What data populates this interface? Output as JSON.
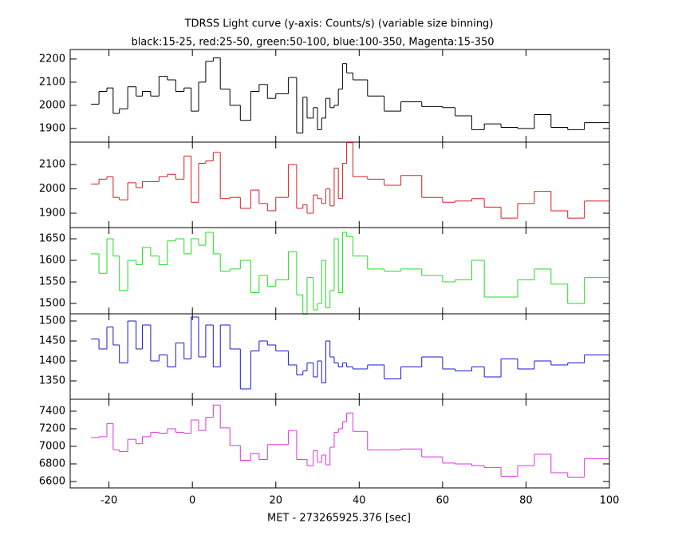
{
  "title": "TDRSS Light curve (y-axis: Counts/s) (variable size binning)",
  "subtitle": "black:15-25, red:25-50, green:50-100, blue:100-350, Magenta:15-350",
  "xlabel": "MET - 273265925.376 [sec]",
  "xlim": [
    -29.3,
    100
  ],
  "xticks": [
    -20,
    0,
    20,
    40,
    60,
    80,
    100
  ],
  "bins": [
    -24.3,
    -22.4,
    -20.5,
    -19,
    -17.5,
    -15.5,
    -13.5,
    -12,
    -10,
    -8,
    -6,
    -4,
    -2,
    -0.3,
    1.5,
    3.2,
    5,
    6.7,
    9,
    11.5,
    14,
    16,
    18,
    20,
    23,
    25,
    26.5,
    27.5,
    29,
    30,
    31,
    32,
    33,
    34,
    35,
    36,
    37,
    38.5,
    42,
    46,
    50,
    55,
    60,
    63,
    67,
    70,
    74,
    78,
    82,
    86,
    90,
    94,
    100
  ],
  "chart_data": [
    {
      "type": "step",
      "color": "#000000",
      "ylim": [
        1841,
        2241
      ],
      "yticks": [
        1900,
        2000,
        2100,
        2200
      ],
      "values": [
        2005,
        2060,
        2075,
        1965,
        1985,
        2080,
        2040,
        2060,
        2040,
        2125,
        2110,
        2060,
        2075,
        1975,
        2100,
        2190,
        2205,
        2070,
        2000,
        1935,
        2060,
        2090,
        2030,
        2050,
        2120,
        1880,
        2035,
        1945,
        1990,
        1895,
        1945,
        2030,
        1990,
        2000,
        2070,
        2180,
        2140,
        2110,
        2040,
        1975,
        2015,
        1995,
        1990,
        1955,
        1895,
        1920,
        1905,
        1900,
        1960,
        1905,
        1895,
        1925
      ]
    },
    {
      "type": "step",
      "color": "#d42020",
      "ylim": [
        1841,
        2192
      ],
      "yticks": [
        1900,
        2000,
        2100
      ],
      "values": [
        2020,
        2040,
        2050,
        1965,
        1955,
        2025,
        2005,
        2030,
        2030,
        2050,
        2060,
        2040,
        2135,
        1945,
        2105,
        2115,
        2150,
        1960,
        1965,
        1920,
        1995,
        1940,
        1910,
        1965,
        2100,
        1920,
        1935,
        1900,
        1975,
        1960,
        1940,
        2000,
        1930,
        2085,
        1960,
        2105,
        2190,
        2050,
        2040,
        2015,
        2055,
        1965,
        1945,
        1950,
        1960,
        1925,
        1880,
        1940,
        1990,
        1910,
        1880,
        1950
      ]
    },
    {
      "type": "step",
      "color": "#22dd22",
      "ylim": [
        1476,
        1676
      ],
      "yticks": [
        1500,
        1550,
        1600,
        1650
      ],
      "values": [
        1615,
        1570,
        1650,
        1610,
        1530,
        1600,
        1590,
        1630,
        1610,
        1590,
        1645,
        1650,
        1615,
        1650,
        1635,
        1665,
        1615,
        1575,
        1580,
        1600,
        1525,
        1565,
        1540,
        1555,
        1620,
        1520,
        1475,
        1560,
        1485,
        1500,
        1600,
        1490,
        1530,
        1650,
        1525,
        1665,
        1655,
        1610,
        1580,
        1575,
        1580,
        1565,
        1550,
        1555,
        1600,
        1515,
        1515,
        1555,
        1580,
        1545,
        1500,
        1560
      ]
    },
    {
      "type": "step",
      "color": "#1a1acc",
      "ylim": [
        1304,
        1518
      ],
      "yticks": [
        1350,
        1400,
        1450,
        1500
      ],
      "values": [
        1455,
        1430,
        1485,
        1440,
        1395,
        1500,
        1430,
        1490,
        1400,
        1415,
        1385,
        1445,
        1405,
        1510,
        1410,
        1490,
        1385,
        1490,
        1430,
        1330,
        1425,
        1450,
        1440,
        1425,
        1390,
        1365,
        1375,
        1395,
        1360,
        1400,
        1345,
        1450,
        1410,
        1395,
        1385,
        1395,
        1385,
        1380,
        1390,
        1355,
        1385,
        1410,
        1380,
        1375,
        1385,
        1360,
        1405,
        1380,
        1400,
        1390,
        1395,
        1415
      ]
    },
    {
      "type": "step",
      "color": "#dd33dd",
      "ylim": [
        6527,
        7536
      ],
      "yticks": [
        6600,
        6800,
        7000,
        7200,
        7400
      ],
      "values": [
        7100,
        7110,
        7260,
        6960,
        6940,
        7080,
        7030,
        7110,
        7160,
        7150,
        7200,
        7160,
        7150,
        7300,
        7180,
        7330,
        7470,
        7210,
        7010,
        6840,
        6920,
        6850,
        7020,
        7020,
        7180,
        6850,
        6850,
        6780,
        6950,
        6820,
        6900,
        6790,
        6990,
        7160,
        7200,
        7280,
        7380,
        7170,
        6960,
        6960,
        6970,
        6880,
        6810,
        6800,
        6780,
        6760,
        6660,
        6780,
        6910,
        6700,
        6650,
        6860
      ]
    }
  ]
}
